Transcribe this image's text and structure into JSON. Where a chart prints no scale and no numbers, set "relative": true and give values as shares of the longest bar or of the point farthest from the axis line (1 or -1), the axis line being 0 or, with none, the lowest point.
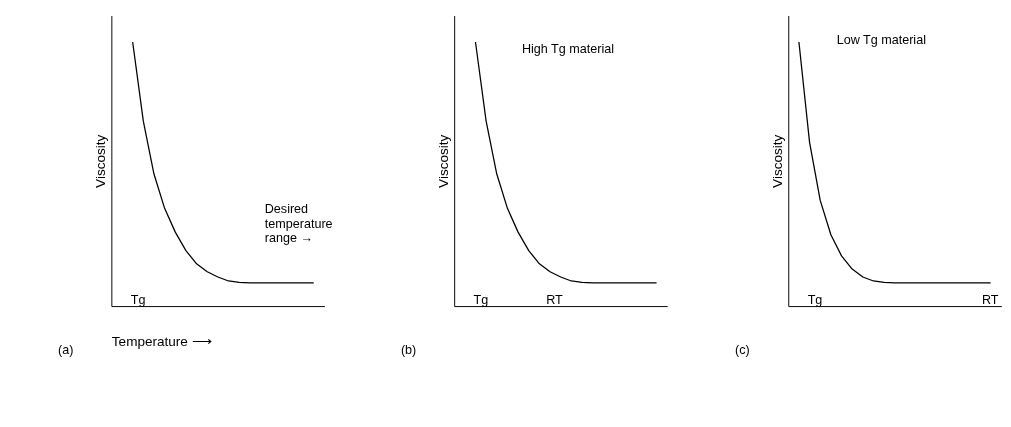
{
  "chart_data": [
    {
      "type": "line",
      "relative": true,
      "xlabel": "Temperature ⟶",
      "ylabel": "Viscosity",
      "tick_labels": false,
      "grid": false,
      "color": "#000000",
      "categories": [
        null,
        null,
        null,
        null,
        null,
        null,
        null,
        null,
        null,
        null,
        null,
        null,
        null,
        null,
        null,
        null,
        null,
        null,
        null,
        null,
        null
      ],
      "values": [
        null,
        null,
        1.0,
        0.7,
        0.5,
        0.37,
        0.28,
        0.21,
        0.16,
        0.13,
        0.11,
        0.095,
        0.09,
        0.088,
        0.088,
        0.088,
        0.088,
        0.088,
        0.088,
        0.088,
        null
      ],
      "annotations": [
        "(a)",
        "Tg",
        "Desired\ntemperature\nrange →"
      ]
    },
    {
      "type": "line",
      "relative": true,
      "ylabel": "Viscosity",
      "tick_labels": false,
      "grid": false,
      "color": "#000000",
      "categories": [
        null,
        null,
        null,
        null,
        null,
        null,
        null,
        null,
        null,
        null,
        null,
        null,
        null,
        null,
        null,
        null,
        null,
        null,
        null,
        null,
        null
      ],
      "values": [
        null,
        null,
        1.0,
        0.7,
        0.5,
        0.37,
        0.28,
        0.21,
        0.16,
        0.13,
        0.11,
        0.095,
        0.09,
        0.088,
        0.088,
        0.088,
        0.088,
        0.088,
        0.088,
        0.088,
        null
      ],
      "annotations": [
        "(b)",
        "Tg",
        "RT",
        "High Tg material"
      ]
    },
    {
      "type": "line",
      "relative": true,
      "ylabel": "Viscosity",
      "tick_labels": false,
      "grid": false,
      "color": "#000000",
      "categories": [
        null,
        null,
        null,
        null,
        null,
        null,
        null,
        null,
        null,
        null,
        null,
        null,
        null,
        null,
        null,
        null,
        null,
        null,
        null,
        null,
        null
      ],
      "values": [
        null,
        1.0,
        0.62,
        0.4,
        0.27,
        0.19,
        0.14,
        0.11,
        0.095,
        0.09,
        0.088,
        0.088,
        0.088,
        0.088,
        0.088,
        0.088,
        0.088,
        0.088,
        0.088,
        0.088,
        null
      ],
      "annotations": [
        "(c)",
        "Tg",
        "RT",
        "Low Tg material"
      ]
    }
  ]
}
